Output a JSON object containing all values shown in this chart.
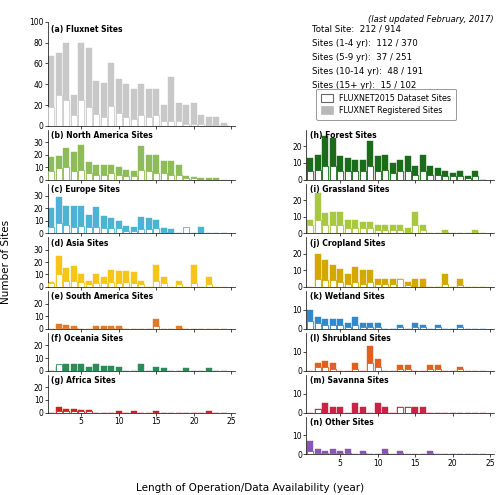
{
  "title_note": "(last updated February, 2017)",
  "info_text": "Total Site:  212 / 914\nSites (1-4 yr):  112 / 370\nSites (5-9 yr):  37 / 251\nSites (10-14 yr):  48 / 191\nSites (15+ yr):  15 / 102",
  "xlabel": "Length of Operation/Data Availability (year)",
  "ylabel": "Number of Sites",
  "panels": {
    "a": {
      "label": "(a) Fluxnet Sites",
      "color_filled": "#c8c8c8",
      "ymax": 100,
      "yticks": [
        0,
        20,
        40,
        60,
        80,
        100
      ],
      "registered": [
        67,
        70,
        80,
        30,
        80,
        75,
        43,
        41,
        60,
        45,
        40,
        35,
        40,
        35,
        35,
        20,
        47,
        22,
        20,
        22,
        10,
        8,
        8,
        3
      ],
      "dataset": [
        18,
        30,
        25,
        10,
        25,
        18,
        11,
        8,
        19,
        12,
        8,
        7,
        10,
        8,
        10,
        5,
        5,
        5,
        2,
        2,
        2,
        1,
        1,
        1
      ]
    },
    "b": {
      "label": "(b) North America Sites",
      "color_filled": "#8fbc5a",
      "ymax": 40,
      "yticks": [
        0,
        10,
        20,
        30
      ],
      "registered": [
        18,
        19,
        25,
        22,
        28,
        14,
        12,
        12,
        12,
        10,
        8,
        7,
        27,
        20,
        20,
        15,
        15,
        12,
        3,
        2,
        1,
        1,
        1,
        0
      ],
      "dataset": [
        7,
        9,
        10,
        7,
        8,
        5,
        4,
        4,
        5,
        4,
        3,
        3,
        8,
        7,
        5,
        5,
        4,
        4,
        1,
        1,
        0,
        0,
        0,
        0
      ]
    },
    "c": {
      "label": "(c) Europe Sites",
      "color_filled": "#4db3d4",
      "ymax": 40,
      "yticks": [
        0,
        10,
        20,
        30
      ],
      "registered": [
        20,
        29,
        22,
        22,
        22,
        15,
        21,
        14,
        12,
        10,
        6,
        5,
        13,
        12,
        11,
        4,
        3,
        0,
        0,
        0,
        5,
        0,
        0,
        0
      ],
      "dataset": [
        5,
        8,
        7,
        5,
        6,
        5,
        5,
        4,
        4,
        4,
        2,
        2,
        3,
        3,
        4,
        1,
        0,
        0,
        0,
        0,
        0,
        0,
        0,
        0
      ],
      "open_bars": [
        0,
        0,
        0,
        0,
        0,
        0,
        0,
        0,
        0,
        0,
        0,
        0,
        0,
        0,
        0,
        0,
        0,
        0,
        5,
        0,
        0,
        0,
        0,
        0
      ]
    },
    "d": {
      "label": "(d) Asia Sites",
      "color_filled": "#f5c518",
      "ymax": 40,
      "yticks": [
        0,
        10,
        20,
        30
      ],
      "registered": [
        4,
        25,
        15,
        17,
        10,
        5,
        10,
        8,
        14,
        13,
        13,
        12,
        5,
        0,
        18,
        8,
        0,
        5,
        0,
        18,
        0,
        8,
        0,
        0
      ],
      "dataset": [
        3,
        10,
        5,
        5,
        4,
        2,
        3,
        3,
        4,
        3,
        4,
        3,
        2,
        0,
        5,
        3,
        0,
        2,
        0,
        3,
        0,
        2,
        0,
        0
      ]
    },
    "e": {
      "label": "(e) South America Sites",
      "color_filled": "#e07b2a",
      "ymax": 30,
      "yticks": [
        0,
        10,
        20
      ],
      "registered": [
        0,
        4,
        3,
        2,
        0,
        0,
        2,
        2,
        2,
        2,
        0,
        0,
        0,
        0,
        8,
        0,
        0,
        2,
        0,
        0,
        0,
        0,
        0,
        0
      ],
      "dataset": [
        0,
        1,
        1,
        1,
        0,
        0,
        0,
        0,
        1,
        1,
        0,
        0,
        0,
        0,
        2,
        0,
        0,
        1,
        0,
        0,
        0,
        0,
        0,
        0
      ]
    },
    "f": {
      "label": "(f) Oceania Sites",
      "color_filled": "#2e8b57",
      "ymax": 30,
      "yticks": [
        0,
        10,
        20
      ],
      "registered": [
        0,
        3,
        5,
        5,
        5,
        3,
        5,
        4,
        4,
        3,
        0,
        0,
        5,
        0,
        3,
        2,
        0,
        0,
        2,
        0,
        0,
        2,
        0,
        0
      ],
      "dataset": [
        0,
        0,
        0,
        0,
        0,
        0,
        0,
        0,
        0,
        0,
        0,
        0,
        0,
        0,
        0,
        0,
        0,
        0,
        0,
        0,
        0,
        0,
        0,
        0
      ],
      "open_bars": [
        0,
        5,
        0,
        0,
        0,
        0,
        0,
        0,
        0,
        0,
        0,
        0,
        0,
        0,
        0,
        0,
        0,
        0,
        0,
        0,
        0,
        0,
        0,
        0
      ]
    },
    "g": {
      "label": "(g) Africa Sites",
      "color_filled": "#cc2222",
      "ymax": 30,
      "yticks": [
        0,
        10,
        20
      ],
      "registered": [
        0,
        4,
        3,
        3,
        2,
        2,
        0,
        0,
        0,
        1,
        0,
        1,
        0,
        0,
        1,
        0,
        0,
        0,
        0,
        0,
        0,
        1,
        0,
        0
      ],
      "dataset": [
        0,
        1,
        1,
        1,
        1,
        1,
        0,
        0,
        0,
        0,
        0,
        0,
        0,
        0,
        0,
        0,
        0,
        0,
        0,
        0,
        0,
        0,
        0,
        0
      ]
    },
    "h": {
      "label": "(h) Forest Sites",
      "color_filled": "#1a6b1a",
      "ymax": 30,
      "yticks": [
        0,
        10,
        20
      ],
      "registered": [
        13,
        15,
        26,
        25,
        14,
        13,
        12,
        12,
        23,
        14,
        15,
        10,
        12,
        14,
        8,
        15,
        8,
        7,
        5,
        4,
        5,
        2,
        5,
        0
      ],
      "dataset": [
        5,
        6,
        8,
        8,
        5,
        5,
        5,
        5,
        8,
        5,
        6,
        4,
        5,
        5,
        3,
        5,
        3,
        3,
        2,
        2,
        2,
        1,
        2,
        0
      ]
    },
    "i": {
      "label": "(i) Grassland Sites",
      "color_filled": "#a8c840",
      "ymax": 30,
      "yticks": [
        0,
        10,
        20
      ],
      "registered": [
        8,
        24,
        12,
        13,
        13,
        8,
        8,
        7,
        7,
        5,
        5,
        5,
        5,
        3,
        13,
        5,
        0,
        0,
        2,
        0,
        0,
        0,
        2,
        0
      ],
      "dataset": [
        5,
        8,
        5,
        5,
        5,
        3,
        3,
        3,
        3,
        2,
        2,
        2,
        2,
        1,
        5,
        2,
        0,
        0,
        1,
        0,
        0,
        0,
        1,
        0
      ]
    },
    "j": {
      "label": "(j) Cropland Sites",
      "color_filled": "#d4a800",
      "ymax": 30,
      "yticks": [
        0,
        10,
        20
      ],
      "registered": [
        0,
        20,
        16,
        13,
        11,
        8,
        12,
        10,
        10,
        5,
        5,
        5,
        5,
        3,
        5,
        5,
        0,
        0,
        8,
        0,
        5,
        0,
        0,
        0
      ],
      "dataset": [
        0,
        5,
        4,
        4,
        3,
        2,
        3,
        2,
        3,
        2,
        2,
        2,
        0,
        1,
        0,
        0,
        0,
        0,
        2,
        0,
        1,
        0,
        0,
        0
      ],
      "open_bars": [
        0,
        0,
        0,
        0,
        0,
        0,
        0,
        0,
        0,
        0,
        0,
        0,
        5,
        0,
        0,
        0,
        0,
        0,
        0,
        0,
        0,
        0,
        0,
        0
      ]
    },
    "k": {
      "label": "(k) Wetland Sites",
      "color_filled": "#3388cc",
      "ymax": 20,
      "yticks": [
        0,
        10
      ],
      "registered": [
        10,
        6,
        5,
        5,
        5,
        3,
        6,
        3,
        3,
        3,
        0,
        0,
        2,
        0,
        3,
        2,
        0,
        2,
        0,
        0,
        2,
        0,
        0,
        0
      ],
      "dataset": [
        4,
        3,
        2,
        2,
        2,
        1,
        2,
        1,
        1,
        1,
        0,
        0,
        1,
        0,
        1,
        1,
        0,
        1,
        0,
        0,
        1,
        0,
        0,
        0
      ]
    },
    "l": {
      "label": "(l) Shrubland Sites",
      "color_filled": "#e06020",
      "ymax": 20,
      "yticks": [
        0,
        10
      ],
      "registered": [
        0,
        4,
        5,
        4,
        0,
        0,
        4,
        0,
        13,
        6,
        0,
        0,
        3,
        3,
        0,
        0,
        3,
        3,
        0,
        0,
        2,
        0,
        0,
        0
      ],
      "dataset": [
        0,
        2,
        2,
        1,
        0,
        0,
        1,
        0,
        4,
        2,
        0,
        0,
        1,
        1,
        0,
        0,
        1,
        1,
        0,
        0,
        1,
        0,
        0,
        0
      ]
    },
    "m": {
      "label": "(m) Savanna Sites",
      "color_filled": "#cc2244",
      "ymax": 20,
      "yticks": [
        0,
        10
      ],
      "registered": [
        0,
        2,
        5,
        3,
        3,
        0,
        5,
        3,
        0,
        5,
        3,
        0,
        3,
        3,
        3,
        3,
        0,
        0,
        0,
        0,
        0,
        0,
        0,
        0
      ],
      "dataset": [
        0,
        0,
        0,
        0,
        0,
        0,
        0,
        0,
        0,
        0,
        0,
        0,
        0,
        0,
        0,
        0,
        0,
        0,
        0,
        0,
        0,
        0,
        0,
        0
      ],
      "open_bars": [
        0,
        2,
        0,
        0,
        0,
        0,
        0,
        0,
        0,
        0,
        0,
        0,
        3,
        3,
        0,
        0,
        0,
        0,
        0,
        0,
        0,
        0,
        0,
        0
      ]
    },
    "n": {
      "label": "(n) Other Sites",
      "color_filled": "#8855bb",
      "ymax": 20,
      "yticks": [
        0,
        10
      ],
      "registered": [
        7,
        3,
        2,
        3,
        2,
        3,
        0,
        2,
        0,
        0,
        3,
        0,
        2,
        0,
        0,
        0,
        2,
        0,
        0,
        0,
        0,
        0,
        0,
        0
      ],
      "dataset": [
        2,
        1,
        1,
        1,
        1,
        1,
        0,
        1,
        0,
        0,
        1,
        0,
        1,
        0,
        0,
        0,
        1,
        0,
        0,
        0,
        0,
        0,
        0,
        0
      ]
    }
  }
}
